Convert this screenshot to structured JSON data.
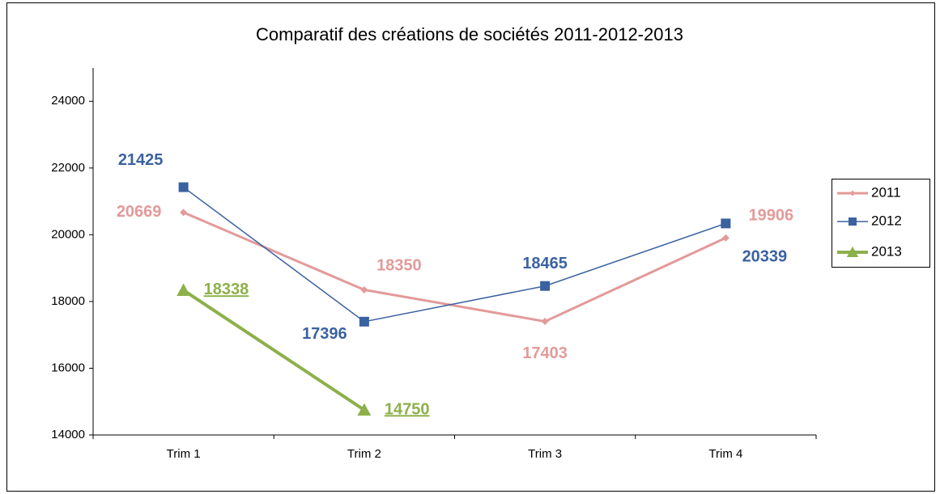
{
  "chart_data": {
    "type": "line",
    "title": "Comparatif des créations de sociétés 2011-2012-2013",
    "categories": [
      "Trim 1",
      "Trim 2",
      "Trim 3",
      "Trim 4"
    ],
    "series": [
      {
        "name": "2011",
        "color": "#e39a9a",
        "marker": "diamond",
        "values": [
          20669,
          18350,
          17403,
          19906
        ]
      },
      {
        "name": "2012",
        "color": "#3b62a0",
        "marker": "square",
        "values": [
          21425,
          17396,
          18465,
          20339
        ]
      },
      {
        "name": "2013",
        "color": "#8db04a",
        "marker": "triangle",
        "values": [
          18338,
          14750,
          null,
          null
        ]
      }
    ],
    "ylim": [
      14000,
      25000
    ],
    "yticks": [
      14000,
      16000,
      18000,
      20000,
      22000,
      24000
    ],
    "grid": false,
    "legend": "right"
  }
}
